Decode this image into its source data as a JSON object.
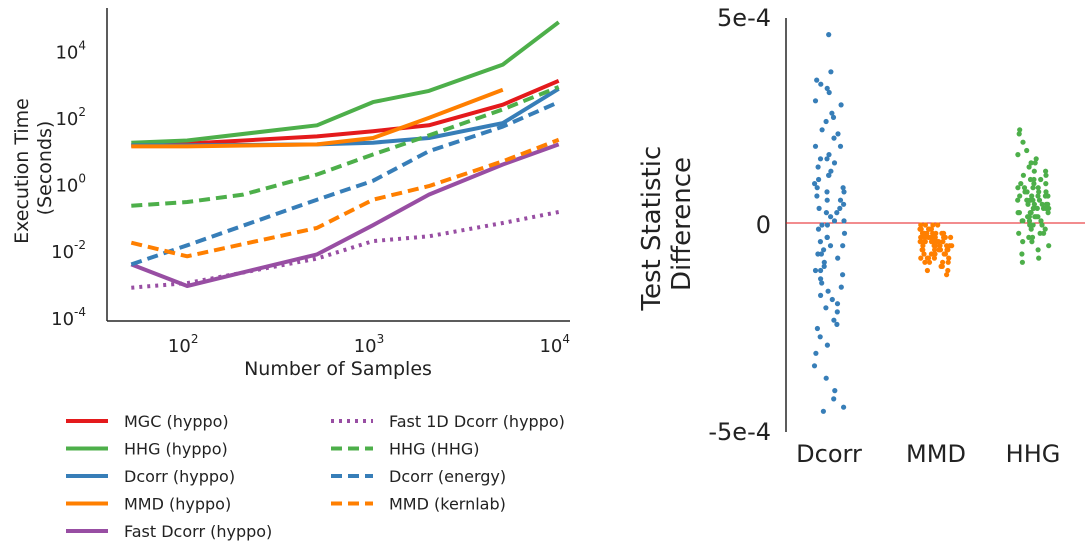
{
  "chart_data": [
    {
      "type": "line",
      "xlabel": "Number of Samples",
      "ylabel_lines": [
        "Execution Time",
        "(Seconds)"
      ],
      "xscale": "log",
      "yscale": "log",
      "xlim": [
        37,
        11500
      ],
      "ylim": [
        8e-05,
        200000
      ],
      "x_ticks": [
        {
          "value": 100,
          "base": "10",
          "exp": "2"
        },
        {
          "value": 1000,
          "base": "10",
          "exp": "3"
        },
        {
          "value": 10000,
          "base": "10",
          "exp": "4"
        }
      ],
      "y_ticks": [
        {
          "value": 0.0001,
          "base": "10",
          "exp": "-4"
        },
        {
          "value": 0.01,
          "base": "10",
          "exp": "-2"
        },
        {
          "value": 1,
          "base": "10",
          "exp": "0"
        },
        {
          "value": 100,
          "base": "10",
          "exp": "2"
        },
        {
          "value": 10000,
          "base": "10",
          "exp": "4"
        }
      ],
      "grid": false,
      "legend_position": "bottom",
      "series": [
        {
          "name": "MGC (hyppo)",
          "color": "#e41a1c",
          "dash": "solid",
          "x": [
            50,
            100,
            500,
            1000,
            2000,
            5000,
            10000
          ],
          "y": [
            15,
            17,
            28,
            40,
            60,
            250,
            1300
          ]
        },
        {
          "name": "HHG (hyppo)",
          "color": "#4daf4a",
          "dash": "solid",
          "x": [
            50,
            100,
            500,
            1000,
            2000,
            5000,
            10000
          ],
          "y": [
            18,
            21,
            60,
            300,
            650,
            4000,
            75000
          ]
        },
        {
          "name": "Dcorr (hyppo)",
          "color": "#377eb8",
          "dash": "solid",
          "x": [
            50,
            100,
            500,
            1000,
            2000,
            5000,
            10000
          ],
          "y": [
            15,
            15,
            16,
            18,
            25,
            70,
            750
          ]
        },
        {
          "name": "MMD (hyppo)",
          "color": "#ff7f00",
          "dash": "solid",
          "x": [
            50,
            100,
            500,
            1000,
            2000,
            5000
          ],
          "y": [
            14,
            14,
            16,
            25,
            100,
            700
          ]
        },
        {
          "name": "Fast Dcorr (hyppo)",
          "color": "#984ea3",
          "dash": "solid",
          "x": [
            50,
            100,
            500,
            1000,
            2000,
            5000,
            10000
          ],
          "y": [
            0.004,
            0.0009,
            0.008,
            0.06,
            0.5,
            4,
            16
          ]
        },
        {
          "name": "Fast 1D Dcorr (hyppo)",
          "color": "#984ea3",
          "dash": "dotted",
          "x": [
            50,
            100,
            500,
            1000,
            2000,
            5000,
            10000
          ],
          "y": [
            0.0008,
            0.0011,
            0.006,
            0.02,
            0.028,
            0.07,
            0.15
          ]
        },
        {
          "name": "HHG (HHG)",
          "color": "#4daf4a",
          "dash": "dashed",
          "x": [
            50,
            100,
            200,
            500,
            1000,
            2000,
            5000,
            10000
          ],
          "y": [
            0.23,
            0.3,
            0.5,
            2,
            8,
            30,
            180,
            850
          ]
        },
        {
          "name": "Dcorr (energy)",
          "color": "#377eb8",
          "dash": "dashed",
          "x": [
            50,
            100,
            500,
            1000,
            2000,
            5000,
            10000
          ],
          "y": [
            0.004,
            0.015,
            0.35,
            1.3,
            10,
            55,
            300
          ]
        },
        {
          "name": "MMD (kernlab)",
          "color": "#ff7f00",
          "dash": "dashed",
          "x": [
            50,
            100,
            500,
            1000,
            2000,
            5000,
            10000
          ],
          "y": [
            0.018,
            0.007,
            0.05,
            0.35,
            0.9,
            5,
            22
          ]
        }
      ]
    },
    {
      "type": "scatter",
      "ylabel_lines": [
        "Test Statistic",
        "Difference"
      ],
      "categories": [
        "Dcorr",
        "MMD",
        "HHG"
      ],
      "ylim": [
        -0.0005,
        0.0005
      ],
      "y_tick_labels": [
        "5e-4",
        "0",
        "-5e-4"
      ],
      "y_tick_values": [
        0.0005,
        0,
        -0.0005
      ],
      "reference_line": {
        "y": 0,
        "color": "#e41a1c"
      },
      "grid": false,
      "series": [
        {
          "category": "Dcorr",
          "color": "#377eb8",
          "values": [
            0.00046,
            0.00037,
            0.00035,
            0.00034,
            0.00033,
            0.00032,
            0.0003,
            0.00029,
            0.00027,
            0.00025,
            0.00023,
            0.00022,
            0.00021,
            0.00019,
            0.00017,
            0.00016,
            0.00015,
            0.00014,
            0.00013,
            0.00012,
            0.00011,
            0.0001,
            9e-05,
            8e-05,
            7e-05,
            6e-05,
            5e-05,
            4e-05,
            3e-05,
            2e-05,
            1e-05,
            0.0,
            -1e-05,
            -2e-05,
            -3e-05,
            -4e-05,
            -5e-05,
            -6e-05,
            -7e-05,
            -8e-05,
            -9e-05,
            -0.0001,
            -0.00011,
            -0.00012,
            -0.00013,
            -0.00015,
            -0.00016,
            -0.00017,
            -0.00018,
            -0.0002,
            -0.00021,
            -0.00023,
            -0.00025,
            -0.00027,
            -0.00029,
            -0.00031,
            -0.00034,
            -0.00037,
            -0.0004,
            -0.00042,
            -0.00044,
            -0.00045,
            0.00016,
            0.00012,
            8e-05,
            4e-05,
            0.0,
            -3e-05,
            -7e-05,
            -0.00011,
            3e-05,
            9e-05,
            -0.00014,
            -0.00019,
            0.00019,
            1e-05,
            -5e-05,
            6e-05,
            -0.00024,
            0.00026
          ]
        },
        {
          "category": "MMD",
          "color": "#ff7f00",
          "values": [
            0.0,
            0.0,
            -1e-05,
            -1e-05,
            -2e-05,
            -2e-05,
            -2e-05,
            -3e-05,
            -3e-05,
            -3e-05,
            -4e-05,
            -4e-05,
            -4e-05,
            -5e-05,
            -5e-05,
            -5e-05,
            -6e-05,
            -6e-05,
            -6e-05,
            -7e-05,
            -7e-05,
            -7e-05,
            -8e-05,
            -8e-05,
            -8e-05,
            -9e-05,
            -9e-05,
            -0.0001,
            -0.0001,
            -0.00011,
            -0.00011,
            -0.00012,
            0.0,
            -1e-05,
            -2e-05,
            -3e-05,
            -4e-05,
            -5e-05,
            -6e-05,
            -3e-05,
            -2e-05,
            -4e-05,
            -1e-05,
            -5e-05,
            -6e-05,
            -7e-05,
            -8e-05,
            -9e-05,
            -3e-05,
            -2e-05,
            -4e-05,
            -1e-05,
            -5e-05,
            -6e-05,
            0.0,
            -2e-05,
            -3e-05,
            -4e-05,
            -1e-05,
            -7e-05,
            -8e-05,
            -2e-05,
            -3e-05,
            -5e-05,
            -4e-05,
            -6e-05,
            -1e-05,
            -3e-05,
            -2e-05,
            -9e-05
          ]
        },
        {
          "category": "HHG",
          "color": "#4daf4a",
          "values": [
            0.00023,
            0.00022,
            0.0002,
            0.00018,
            0.00017,
            0.00016,
            0.00015,
            0.00014,
            0.00013,
            0.00012,
            0.00011,
            0.00011,
            0.0001,
            0.0001,
            9e-05,
            9e-05,
            8e-05,
            8e-05,
            7e-05,
            7e-05,
            7e-05,
            6e-05,
            6e-05,
            6e-05,
            5e-05,
            5e-05,
            5e-05,
            4e-05,
            4e-05,
            4e-05,
            3e-05,
            3e-05,
            3e-05,
            2e-05,
            2e-05,
            1e-05,
            1e-05,
            0.0,
            0.0,
            -1e-05,
            -1e-05,
            -2e-05,
            -2e-05,
            -3e-05,
            -4e-05,
            -5e-05,
            -6e-05,
            -7e-05,
            -8e-05,
            -9e-05,
            0.00012,
            0.0001,
            8e-05,
            6e-05,
            5e-05,
            4e-05,
            3e-05,
            2e-05,
            1e-05,
            7e-05,
            9e-05,
            0.00011,
            6e-05,
            4e-05,
            2e-05,
            0.0,
            -2e-05,
            -4e-05,
            5e-05,
            3e-05,
            0.00013,
            0.00015,
            7e-05,
            1e-05,
            -3e-05,
            8e-05,
            6e-05,
            4e-05,
            2e-05,
            9e-05
          ]
        }
      ]
    }
  ]
}
